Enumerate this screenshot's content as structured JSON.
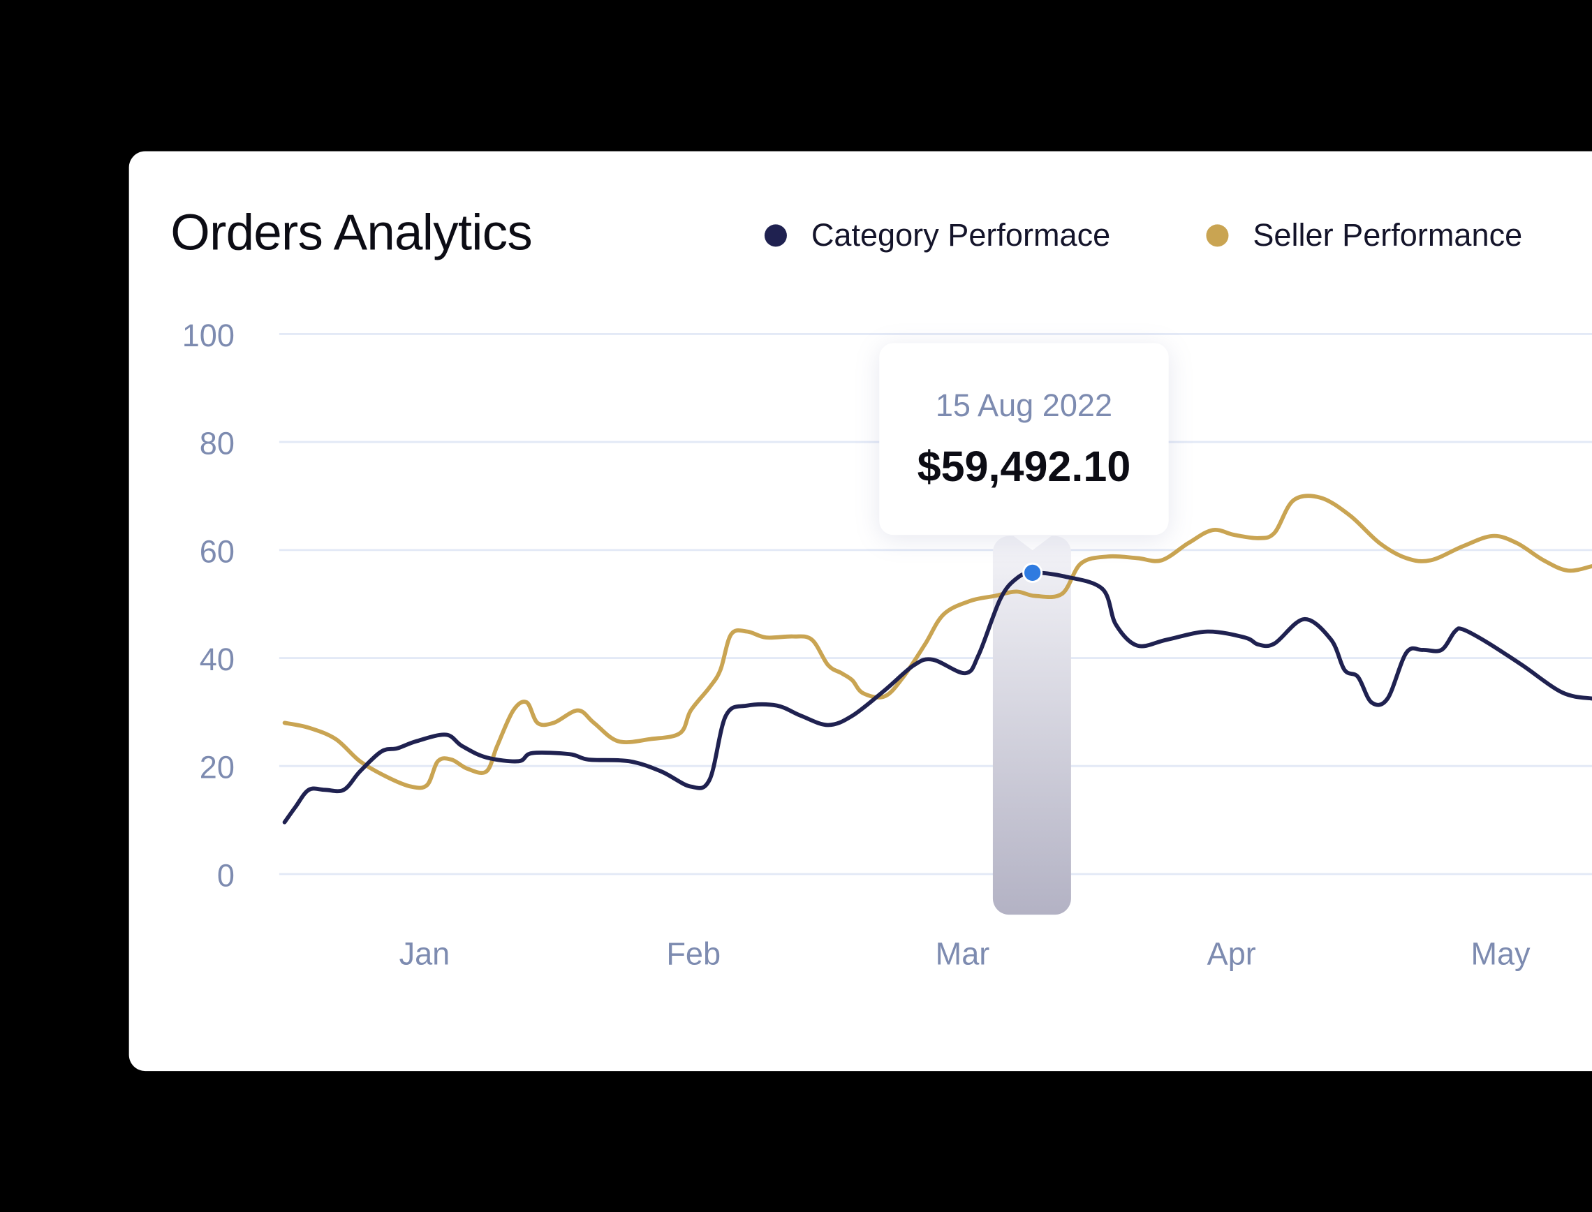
{
  "header": {
    "title": "Orders Analytics"
  },
  "legend": [
    {
      "label": "Category Performace",
      "color": "#1f2150"
    },
    {
      "label": "Seller Performance",
      "color": "#c9a452"
    }
  ],
  "tooltip": {
    "date": "15 Aug 2022",
    "value": "$59,492.10",
    "marker_color": "#2f7be0"
  },
  "chart_data": {
    "type": "line",
    "title": "Orders Analytics",
    "ylim": [
      0,
      100
    ],
    "y_ticks": [
      "100",
      "80",
      "60",
      "40",
      "20",
      "0"
    ],
    "y_tick_values": [
      100,
      80,
      60,
      40,
      20,
      0
    ],
    "x_ticks": [
      "Jan",
      "Feb",
      "Mar",
      "Apr",
      "May"
    ],
    "x_tick_values": [
      1,
      2,
      3,
      4,
      5
    ],
    "xlim": [
      0.46,
      5.34
    ],
    "grid": true,
    "legend_position": "top-right",
    "highlight_x": 3.26,
    "series": [
      {
        "name": "Category Performace",
        "color": "#1f2150",
        "points": [
          [
            0.48,
            9.6
          ],
          [
            0.52,
            12.4
          ],
          [
            0.57,
            15.6
          ],
          [
            0.63,
            15.6
          ],
          [
            0.7,
            15.6
          ],
          [
            0.76,
            19.0
          ],
          [
            0.84,
            22.7
          ],
          [
            0.9,
            23.3
          ],
          [
            0.97,
            24.6
          ],
          [
            1.08,
            25.8
          ],
          [
            1.14,
            23.7
          ],
          [
            1.23,
            21.6
          ],
          [
            1.35,
            20.9
          ],
          [
            1.4,
            22.4
          ],
          [
            1.54,
            22.2
          ],
          [
            1.61,
            21.2
          ],
          [
            1.76,
            20.9
          ],
          [
            1.88,
            19.0
          ],
          [
            1.99,
            16.2
          ],
          [
            2.06,
            17.5
          ],
          [
            2.12,
            29.3
          ],
          [
            2.2,
            31.2
          ],
          [
            2.31,
            31.2
          ],
          [
            2.4,
            29.3
          ],
          [
            2.5,
            27.6
          ],
          [
            2.59,
            29.3
          ],
          [
            2.71,
            34.0
          ],
          [
            2.82,
            38.7
          ],
          [
            2.89,
            39.7
          ],
          [
            3.01,
            37.2
          ],
          [
            3.06,
            40.6
          ],
          [
            3.14,
            50.9
          ],
          [
            3.2,
            54.7
          ],
          [
            3.26,
            55.8
          ],
          [
            3.38,
            55.1
          ],
          [
            3.52,
            52.8
          ],
          [
            3.57,
            46.2
          ],
          [
            3.65,
            42.3
          ],
          [
            3.76,
            43.4
          ],
          [
            3.91,
            44.9
          ],
          [
            4.05,
            43.8
          ],
          [
            4.1,
            42.5
          ],
          [
            4.16,
            42.7
          ],
          [
            4.27,
            47.2
          ],
          [
            4.37,
            43.4
          ],
          [
            4.42,
            37.8
          ],
          [
            4.47,
            36.5
          ],
          [
            4.52,
            31.8
          ],
          [
            4.58,
            32.5
          ],
          [
            4.65,
            41.0
          ],
          [
            4.71,
            41.5
          ],
          [
            4.78,
            41.5
          ],
          [
            4.83,
            44.9
          ],
          [
            4.86,
            45.3
          ],
          [
            4.95,
            42.9
          ],
          [
            5.08,
            38.7
          ],
          [
            5.23,
            33.6
          ],
          [
            5.34,
            32.5
          ]
        ]
      },
      {
        "name": "Seller Performance",
        "color": "#c9a452",
        "points": [
          [
            0.48,
            28.0
          ],
          [
            0.57,
            27.1
          ],
          [
            0.67,
            25.0
          ],
          [
            0.76,
            20.9
          ],
          [
            0.86,
            18.0
          ],
          [
            0.95,
            16.2
          ],
          [
            1.01,
            16.5
          ],
          [
            1.05,
            20.9
          ],
          [
            1.1,
            21.2
          ],
          [
            1.16,
            19.5
          ],
          [
            1.23,
            19.0
          ],
          [
            1.27,
            23.7
          ],
          [
            1.33,
            30.3
          ],
          [
            1.38,
            31.8
          ],
          [
            1.42,
            28.0
          ],
          [
            1.48,
            28.0
          ],
          [
            1.57,
            30.3
          ],
          [
            1.63,
            28.0
          ],
          [
            1.72,
            24.6
          ],
          [
            1.84,
            25.0
          ],
          [
            1.95,
            26.1
          ],
          [
            1.99,
            30.3
          ],
          [
            2.06,
            34.6
          ],
          [
            2.1,
            37.8
          ],
          [
            2.14,
            44.4
          ],
          [
            2.2,
            44.9
          ],
          [
            2.27,
            43.8
          ],
          [
            2.37,
            44.0
          ],
          [
            2.44,
            43.4
          ],
          [
            2.5,
            38.7
          ],
          [
            2.55,
            37.2
          ],
          [
            2.59,
            35.9
          ],
          [
            2.63,
            33.5
          ],
          [
            2.71,
            32.9
          ],
          [
            2.78,
            36.5
          ],
          [
            2.86,
            42.5
          ],
          [
            2.93,
            48.1
          ],
          [
            3.03,
            50.6
          ],
          [
            3.12,
            51.5
          ],
          [
            3.2,
            52.3
          ],
          [
            3.27,
            51.5
          ],
          [
            3.37,
            51.9
          ],
          [
            3.44,
            57.5
          ],
          [
            3.54,
            58.8
          ],
          [
            3.65,
            58.5
          ],
          [
            3.74,
            58.1
          ],
          [
            3.84,
            61.3
          ],
          [
            3.93,
            63.7
          ],
          [
            4.01,
            62.8
          ],
          [
            4.1,
            62.2
          ],
          [
            4.16,
            63.2
          ],
          [
            4.23,
            69.2
          ],
          [
            4.33,
            69.7
          ],
          [
            4.44,
            66.4
          ],
          [
            4.55,
            61.3
          ],
          [
            4.65,
            58.5
          ],
          [
            4.74,
            58.1
          ],
          [
            4.86,
            60.7
          ],
          [
            4.97,
            62.6
          ],
          [
            5.06,
            61.3
          ],
          [
            5.16,
            58.1
          ],
          [
            5.25,
            56.2
          ],
          [
            5.34,
            57.0
          ]
        ]
      }
    ]
  }
}
